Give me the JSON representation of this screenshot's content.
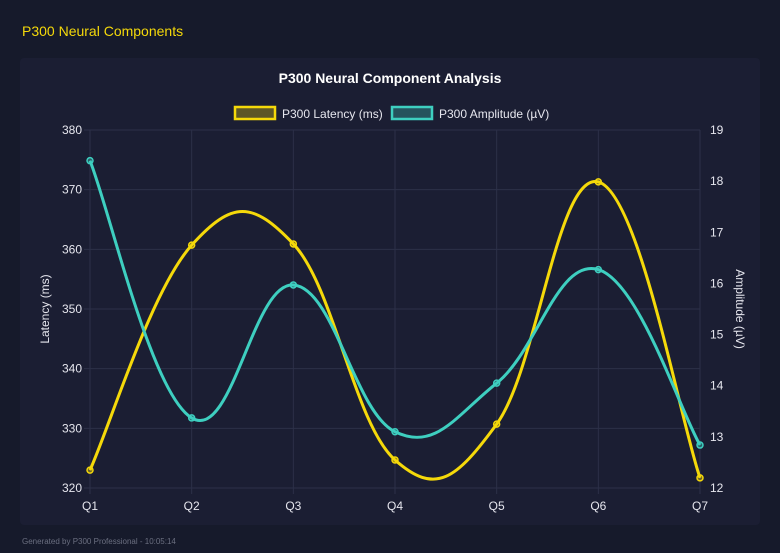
{
  "page_title": "P300 Neural Components",
  "footer": "Generated by P300 Professional - 10:05:14",
  "chart_data": {
    "type": "line",
    "title": "P300 Neural Component Analysis",
    "categories": [
      "Q1",
      "Q2",
      "Q3",
      "Q4",
      "Q5",
      "Q6",
      "Q7"
    ],
    "series": [
      {
        "name": "P300 Latency (ms)",
        "axis": "left",
        "color": "#f5d90a",
        "values": [
          323.0,
          360.7,
          360.9,
          324.7,
          330.7,
          371.3,
          321.7
        ]
      },
      {
        "name": "P300 Amplitude (µV)",
        "axis": "right",
        "color": "#3ecfc0",
        "values": [
          18.4,
          13.37,
          15.97,
          13.1,
          14.05,
          16.27,
          12.84
        ]
      }
    ],
    "ylabel": "Latency (ms)",
    "y2label": "Amplitude (µV)",
    "ylim": [
      320,
      380
    ],
    "y_ticks": [
      "320",
      "330",
      "340",
      "350",
      "360",
      "370",
      "380"
    ],
    "y2lim": [
      12,
      19
    ],
    "y2_ticks": [
      "12",
      "13",
      "14",
      "15",
      "16",
      "17",
      "18",
      "19"
    ],
    "grid": true,
    "legend": "top"
  }
}
